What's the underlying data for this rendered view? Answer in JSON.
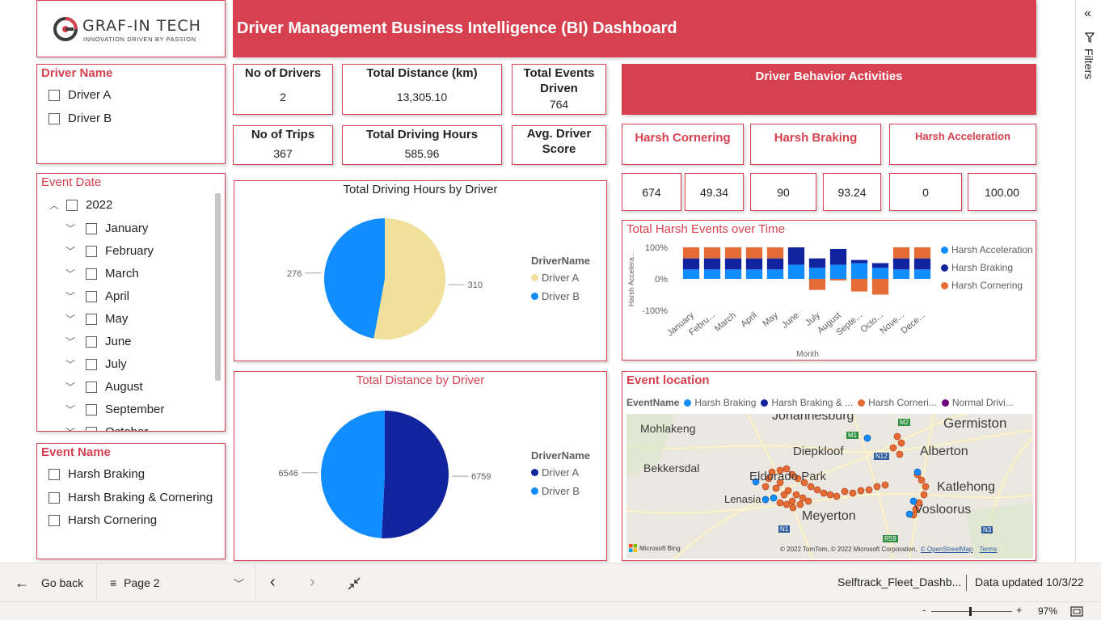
{
  "header": {
    "logo_text": "GRAF-IN TECH",
    "logo_tagline": "INNOVATION DRIVEN BY PASSION",
    "title": "Driver Management Business Intelligence (BI) Dashboard"
  },
  "filters_pane": {
    "label": "Filters"
  },
  "driver_slicer": {
    "title": "Driver Name",
    "items": [
      {
        "label": "Driver A"
      },
      {
        "label": "Driver B"
      }
    ]
  },
  "date_slicer": {
    "title": "Event Date",
    "year": "2022",
    "months": [
      {
        "label": "January"
      },
      {
        "label": "February"
      },
      {
        "label": "March"
      },
      {
        "label": "April"
      },
      {
        "label": "May"
      },
      {
        "label": "June"
      },
      {
        "label": "July"
      },
      {
        "label": "August"
      },
      {
        "label": "September"
      },
      {
        "label": "October"
      }
    ]
  },
  "event_slicer": {
    "title": "Event Name",
    "items": [
      {
        "label": "Harsh Braking"
      },
      {
        "label": "Harsh Braking & Cornering"
      },
      {
        "label": "Harsh Cornering"
      }
    ]
  },
  "kpis": {
    "drivers": {
      "label": "No of Drivers",
      "value": "2"
    },
    "distance": {
      "label": "Total Distance (km)",
      "value": "13,305.10"
    },
    "events": {
      "label1": "Total Events",
      "label2": "Driven",
      "value": "764"
    },
    "trips": {
      "label": "No of Trips",
      "value": "367"
    },
    "hours": {
      "label": "Total Driving Hours",
      "value": "585.96"
    },
    "score": {
      "label1": "Avg. Driver",
      "label2": "Score",
      "value": ""
    }
  },
  "behavior": {
    "title": "Driver Behavior Activities",
    "cornering": {
      "label": "Harsh Cornering",
      "count": "674",
      "score": "49.34"
    },
    "braking": {
      "label": "Harsh Braking",
      "count": "90",
      "score": "93.24"
    },
    "acceleration": {
      "label": "Harsh Acceleration",
      "count": "0",
      "score": "100.00"
    }
  },
  "colors": {
    "accent": "#d7414f",
    "driver_a_hours": "#f1e09c",
    "driver_b": "#118dff",
    "driver_a_distance": "#12239e",
    "cornering": "#e66c37",
    "braking": "#12239e",
    "acceleration": "#118dff",
    "normal": "#6b007b"
  },
  "hours_chart": {
    "title": "Total Driving Hours by Driver",
    "legend_title": "DriverName",
    "chart_data": {
      "type": "pie",
      "title": "Total Driving Hours by Driver",
      "labels": [
        "Driver A",
        "Driver B"
      ],
      "values": [
        310,
        276
      ],
      "value_labels": [
        "310",
        "276"
      ]
    }
  },
  "distance_chart": {
    "title": "Total Distance by Driver",
    "legend_title": "DriverName",
    "chart_data": {
      "type": "pie",
      "title": "Total Distance by Driver",
      "labels": [
        "Driver A",
        "Driver B"
      ],
      "values": [
        6759,
        6546
      ],
      "value_labels": [
        "6759",
        "6546"
      ]
    }
  },
  "harsh_chart": {
    "title": "Total Harsh Events over Time",
    "ylabel": "Harsh Accelera...",
    "xlabel": "Month",
    "yticks": [
      "100%",
      "0%",
      "-100%"
    ],
    "legend": [
      "Harsh Acceleration",
      "Harsh Braking",
      "Harsh Cornering"
    ],
    "chart_data": {
      "type": "bar",
      "stacked": "100%",
      "categories": [
        "January",
        "Febru...",
        "March",
        "April",
        "May",
        "June",
        "July",
        "August",
        "Septe...",
        "Octo...",
        "Nove...",
        "Dece..."
      ],
      "ylim": [
        -100,
        100
      ],
      "series": [
        {
          "name": "Harsh Acceleration",
          "values": [
            30,
            30,
            30,
            30,
            30,
            45,
            35,
            45,
            50,
            35,
            30,
            30
          ]
        },
        {
          "name": "Harsh Braking",
          "values": [
            35,
            35,
            35,
            35,
            35,
            55,
            30,
            50,
            10,
            15,
            35,
            35
          ]
        },
        {
          "name": "Harsh Cornering",
          "values": [
            35,
            35,
            35,
            35,
            35,
            0,
            -35,
            -5,
            -40,
            -50,
            35,
            35
          ]
        }
      ]
    }
  },
  "map": {
    "title": "Event location",
    "legend_title": "EventName",
    "legend": [
      "Harsh Braking",
      "Harsh Braking & ...",
      "Harsh Corneri...",
      "Normal Drivi..."
    ],
    "places": [
      "Johannesburg",
      "Germiston",
      "Mohlakeng",
      "Diepkloof",
      "Alberton",
      "Bekkersdal",
      "Eldorado Park",
      "Katlehong",
      "Lenasia",
      "Vosloorus",
      "Meyerton"
    ],
    "roads": [
      "M1",
      "M2",
      "N12",
      "N1",
      "R59",
      "N3"
    ],
    "bing_label": "Microsoft Bing",
    "copyright": "© 2022 TomTom, © 2022 Microsoft Corporation,",
    "osm_link": "© OpenStreetMap",
    "terms_link": "Terms"
  },
  "nav": {
    "back_label": "Go back",
    "page_label": "Page 2",
    "file_name": "Selftrack_Fleet_Dashb...",
    "updated": "Data updated 10/3/22"
  },
  "status": {
    "zoom": "97%",
    "minus": "-",
    "plus": "+"
  }
}
